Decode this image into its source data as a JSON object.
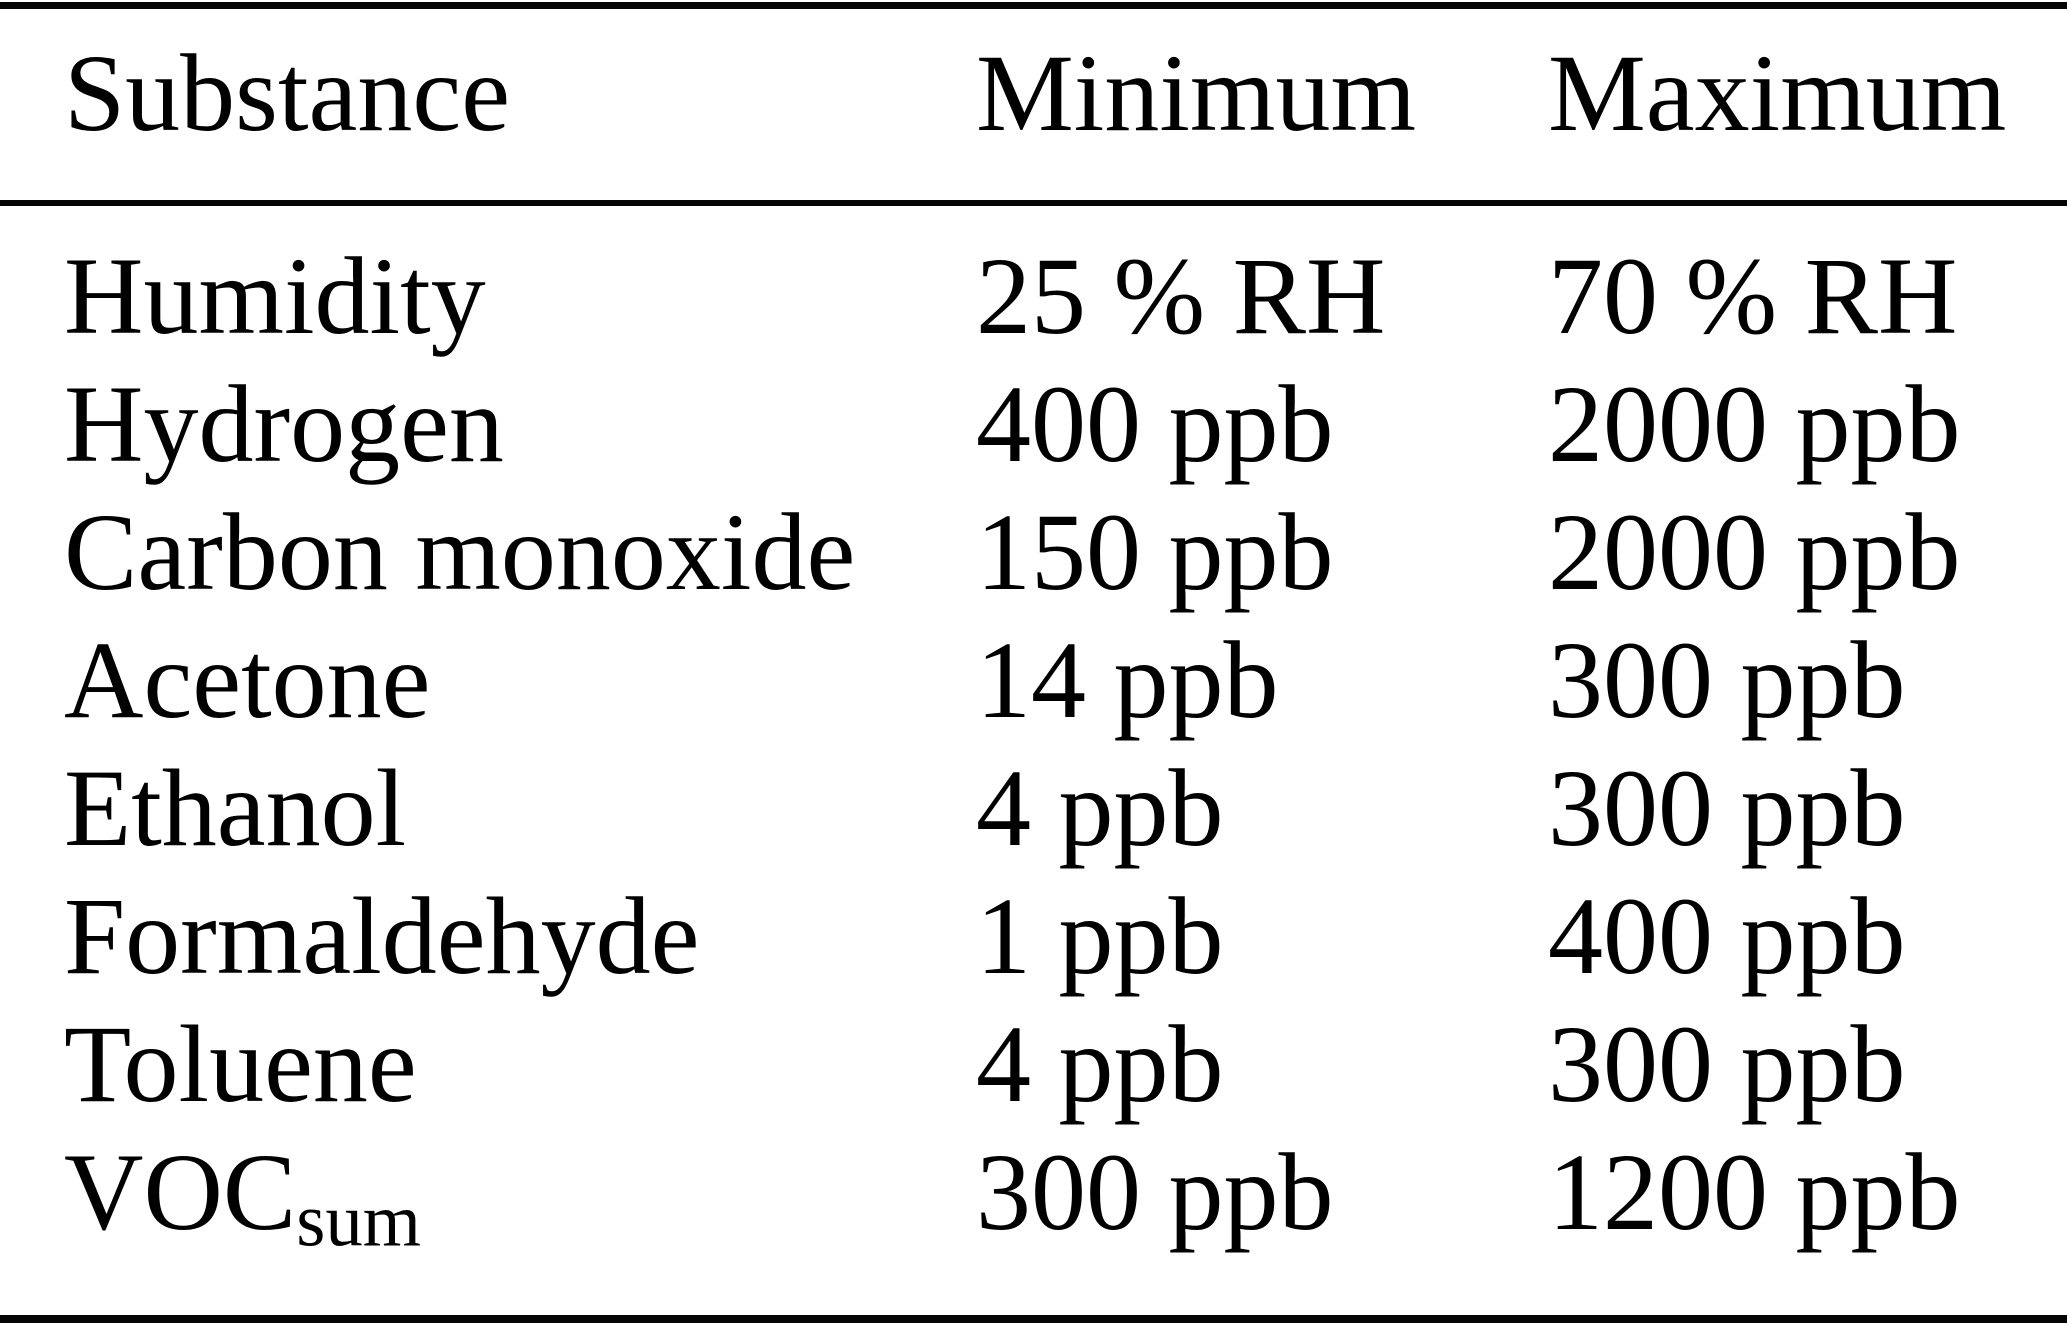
{
  "table": {
    "columns": [
      "Substance",
      "Minimum",
      "Maximum"
    ],
    "rows": [
      {
        "substance": "Humidity",
        "sub": "",
        "min": "25 % RH",
        "max": "70 % RH"
      },
      {
        "substance": "Hydrogen",
        "sub": "",
        "min": "400 ppb",
        "max": "2000 ppb"
      },
      {
        "substance": "Carbon monoxide",
        "sub": "",
        "min": "150 ppb",
        "max": "2000 ppb"
      },
      {
        "substance": "Acetone",
        "sub": "",
        "min": "14 ppb",
        "max": "300 ppb"
      },
      {
        "substance": "Ethanol",
        "sub": "",
        "min": "4 ppb",
        "max": "300 ppb"
      },
      {
        "substance": "Formaldehyde",
        "sub": "",
        "min": "1 ppb",
        "max": "400 ppb"
      },
      {
        "substance": "Toluene",
        "sub": "",
        "min": "4 ppb",
        "max": "300 ppb"
      },
      {
        "substance": "VOC",
        "sub": "sum",
        "min": "300 ppb",
        "max": "1200 ppb"
      }
    ]
  },
  "colors": {
    "background": "#ffffff",
    "text": "#000000",
    "rule": "#050505"
  }
}
